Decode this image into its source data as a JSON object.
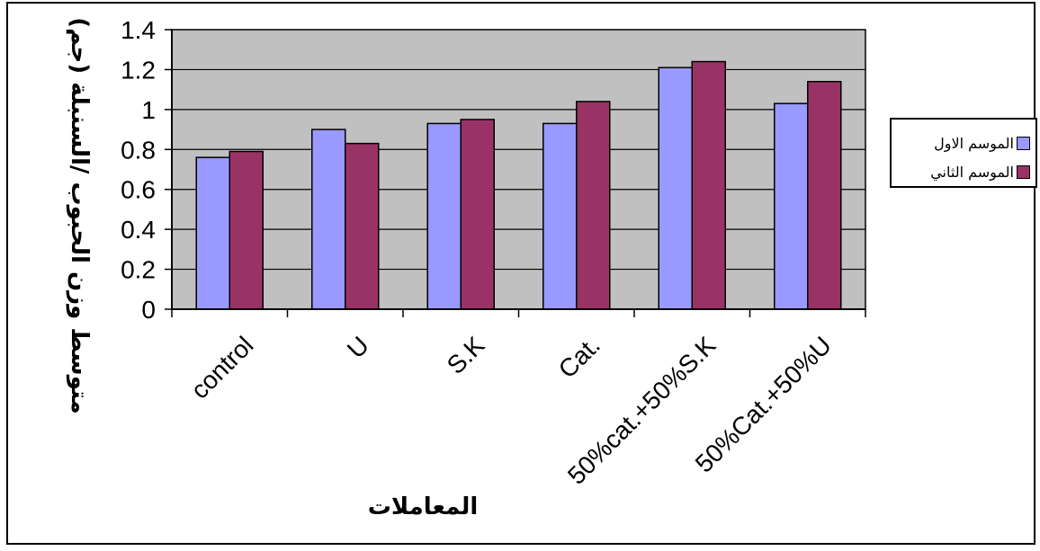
{
  "chart_data": {
    "type": "bar",
    "title": "",
    "ylabel": "متوسط وزن الحبوب /السنبلة (جم)",
    "xlabel": "المعاملات",
    "ylim": [
      0,
      1.4
    ],
    "yticks": [
      "0",
      "0.2",
      "0.4",
      "0.6",
      "0.8",
      "1",
      "1.2",
      "1.4"
    ],
    "grid": true,
    "legend_position": "right",
    "categories": [
      "control",
      "U",
      "S.K",
      "Cat.",
      "50%cat.+50%S.K",
      "50%Cat.+50%U"
    ],
    "series": [
      {
        "name": "الموسم الاول",
        "color": "#9999ff",
        "values": [
          0.76,
          0.9,
          0.93,
          0.93,
          1.21,
          1.03
        ]
      },
      {
        "name": "الموسم الثاني",
        "color": "#993366",
        "values": [
          0.79,
          0.83,
          0.95,
          1.04,
          1.24,
          1.14
        ]
      }
    ],
    "plot_background": "#c0c0c0"
  }
}
